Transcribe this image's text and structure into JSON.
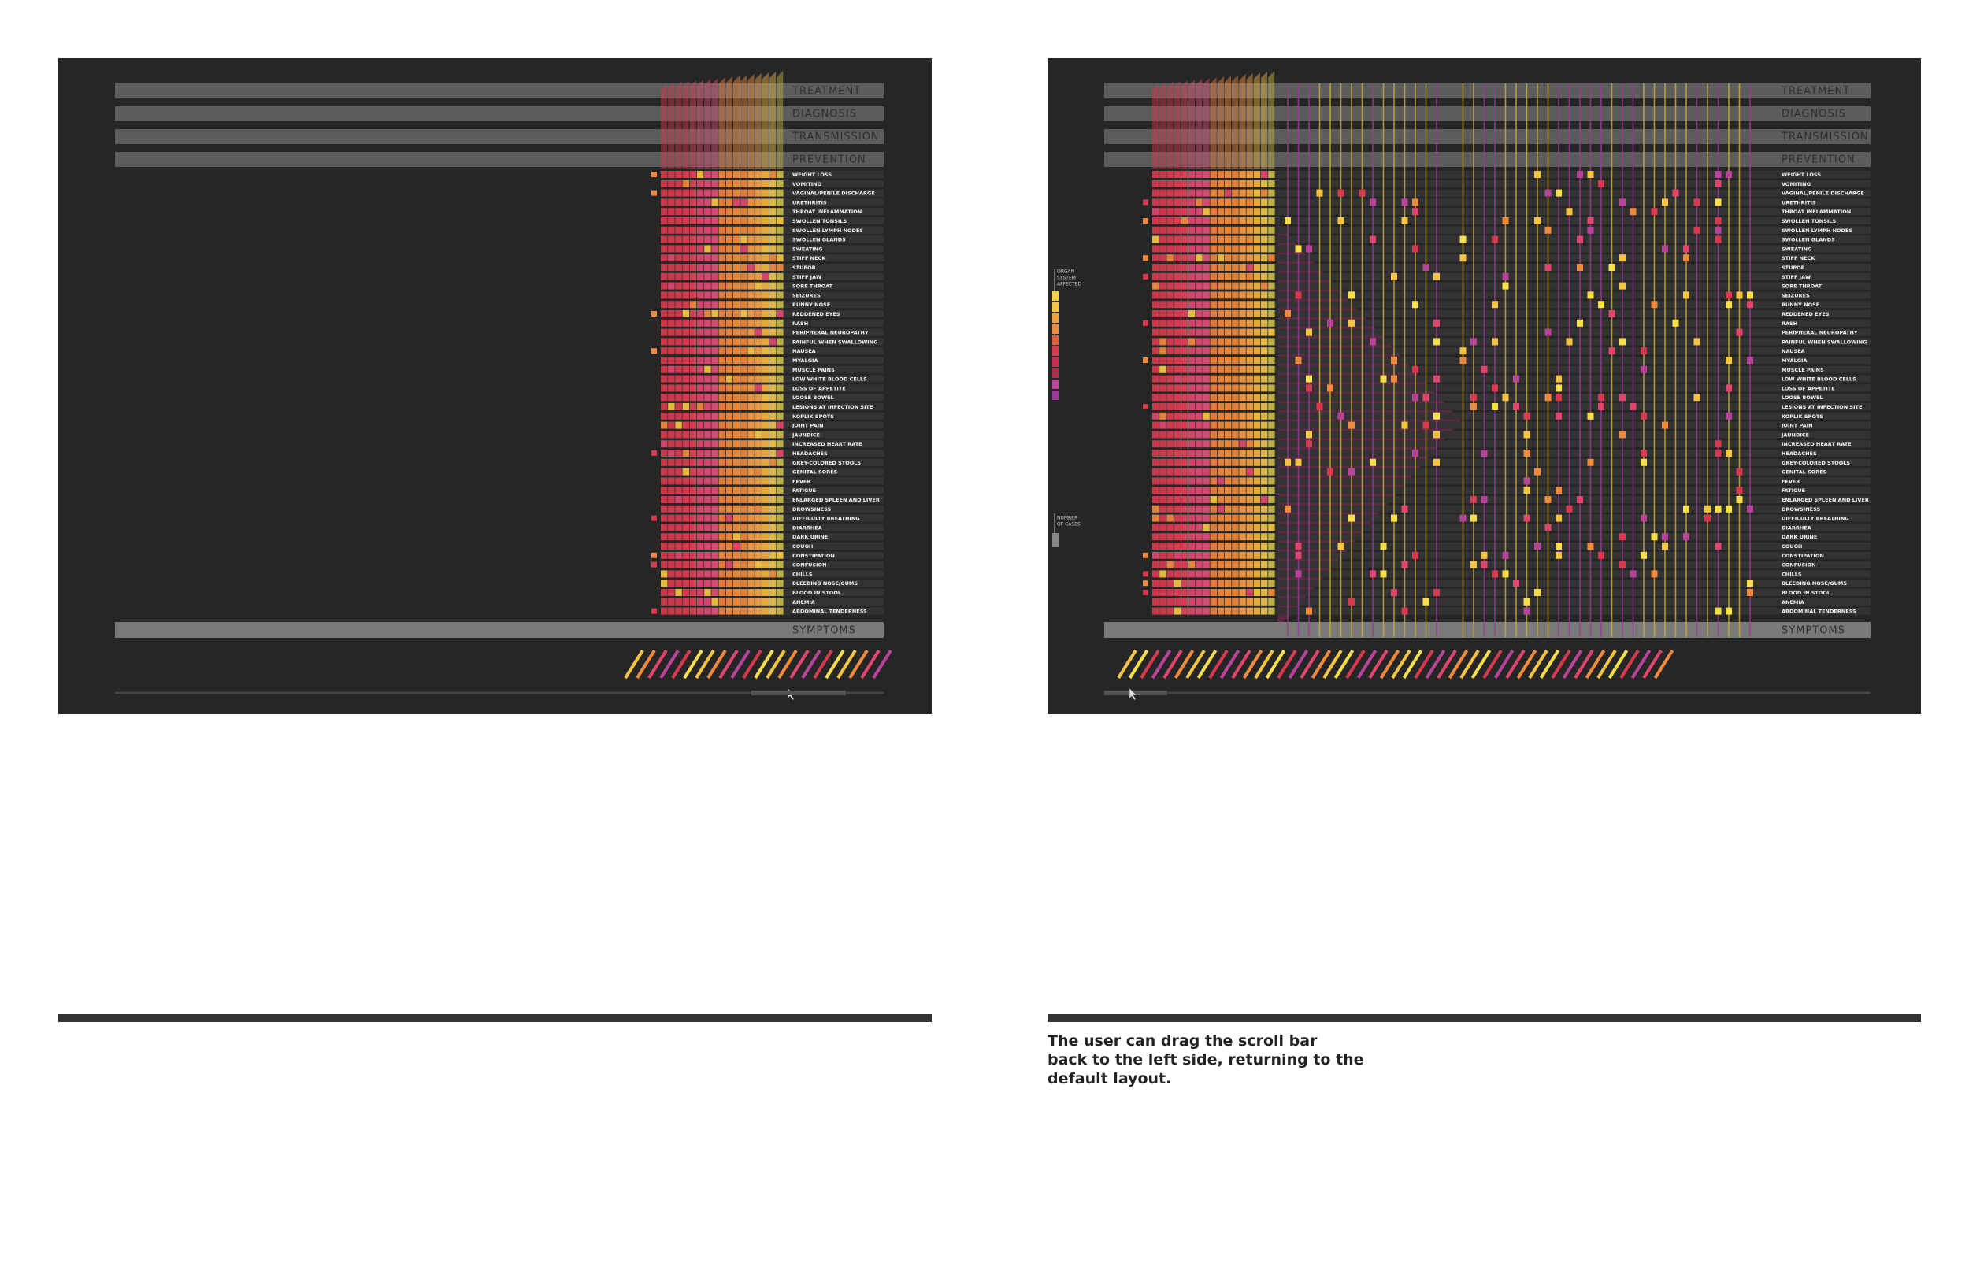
{
  "sections": [
    "TREATMENT",
    "DIAGNOSIS",
    "TRANSMISSION",
    "PREVENTION"
  ],
  "symptoms_header": "SYMPTOMS",
  "symptoms": [
    "WEIGHT LOSS",
    "VOMITING",
    "VAGINAL/PENILE DISCHARGE",
    "URETHRITIS",
    "THROAT INFLAMMATION",
    "SWOLLEN TONSILS",
    "SWOLLEN LYMPH NODES",
    "SWOLLEN GLANDS",
    "SWEATING",
    "STIFF NECK",
    "STUPOR",
    "STIFF JAW",
    "SORE THROAT",
    "SEIZURES",
    "RUNNY NOSE",
    "REDDENED EYES",
    "RASH",
    "PERIPHERAL NEUROPATHY",
    "PAINFUL WHEN SWALLOWING",
    "NAUSEA",
    "MYALGIA",
    "MUSCLE PAINS",
    "LOW WHITE BLOOD CELLS",
    "LOSS OF APPETITE",
    "LOOSE BOWEL",
    "LESIONS AT INFECTION SITE",
    "KOPLIK SPOTS",
    "JOINT PAIN",
    "JAUNDICE",
    "INCREASED HEART RATE",
    "HEADACHES",
    "GREY-COLORED STOOLS",
    "GENITAL SORES",
    "FEVER",
    "FATIGUE",
    "ENLARGED SPLEEN AND LIVER",
    "DROWSINESS",
    "DIFFICULTY BREATHING",
    "DIARRHEA",
    "DARK URINE",
    "COUGH",
    "CONSTIPATION",
    "CONFUSION",
    "CHILLS",
    "BLEEDING NOSE/GUMS",
    "BLOOD IN STOOL",
    "ANEMIA",
    "ABDOMINAL TENDERNESS"
  ],
  "legend": {
    "organ_system": [
      "ORGAN",
      "SYSTEM",
      "AFFECTED"
    ],
    "cases": [
      "NUMBER",
      "OF CASES"
    ]
  },
  "caption": [
    "The user can drag the scroll bar",
    "back to the left side, returning to the",
    "default layout."
  ]
}
